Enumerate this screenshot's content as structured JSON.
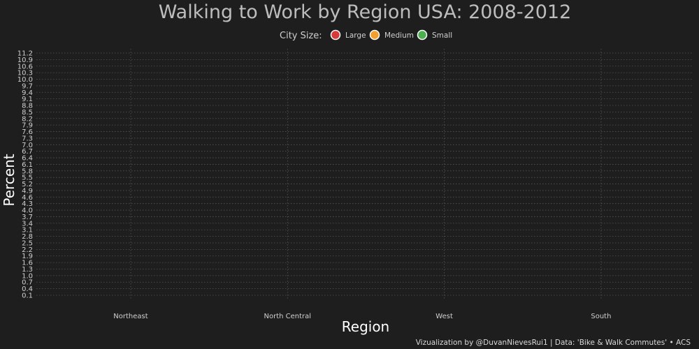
{
  "chart_data": {
    "type": "scatter",
    "title": "Walking to Work by Region USA: 2008-2012",
    "xlabel": "Region",
    "ylabel": "Percent",
    "categories": [
      "Northeast",
      "North Central",
      "West",
      "South"
    ],
    "y_ticks": [
      "0.1",
      "0.4",
      "0.7",
      "1.0",
      "1.3",
      "1.6",
      "1.9",
      "2.2",
      "2.5",
      "2.8",
      "3.1",
      "3.4",
      "3.7",
      "4.0",
      "4.3",
      "4.6",
      "4.9",
      "5.2",
      "5.5",
      "5.8",
      "6.1",
      "6.4",
      "6.7",
      "7.0",
      "7.3",
      "7.6",
      "7.9",
      "8.2",
      "8.5",
      "8.8",
      "9.1",
      "9.4",
      "9.7",
      "10.0",
      "10.3",
      "10.6",
      "10.9",
      "11.2"
    ],
    "ylim": [
      0.1,
      11.2
    ],
    "grid": true,
    "legend": {
      "title": "City Size:",
      "placement": "top-center",
      "entries": [
        {
          "name": "Large",
          "color": "#d63a3a"
        },
        {
          "name": "Medium",
          "color": "#f0a030"
        },
        {
          "name": "Small",
          "color": "#4caf50"
        }
      ]
    },
    "series": [
      {
        "name": "Large",
        "values": []
      },
      {
        "name": "Medium",
        "values": []
      },
      {
        "name": "Small",
        "values": []
      }
    ],
    "caption": "Vizualization by @DuvanNievesRui1 | Data: 'Bike & Walk Commutes' • ACS"
  },
  "colors": {
    "background": "#1e1e1e",
    "grid": "#555555",
    "text": "#cfcfcf"
  }
}
